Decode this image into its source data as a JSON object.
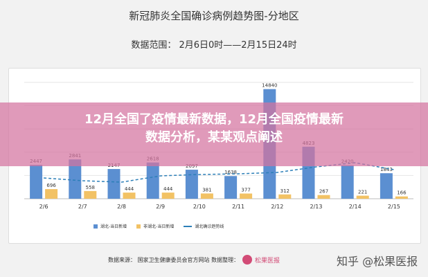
{
  "header": {
    "title": "新冠肺炎全国确诊病例趋势图-分地区",
    "range": "数据范围：  2月6日0时——2月15日24时"
  },
  "banner": {
    "line1": "12月全国了疫情最新数据，12月全国疫情最新",
    "line2": "数据分析，某某观点阐述"
  },
  "footer": {
    "source": "数据来源：   国家卫生健康委员会官方网站   数据整理：",
    "brand": "松果医报",
    "zhihu": "知乎 @松果医报"
  },
  "colors": {
    "hubei": "#5b8fd1",
    "nonhubei": "#f2c265",
    "line": "#2c7fb8"
  },
  "chart_data": {
    "type": "bar",
    "categories": [
      "2/6",
      "2/7",
      "2/8",
      "2/9",
      "2/10",
      "2/11",
      "2/12",
      "2/13",
      "2/14",
      "2/15"
    ],
    "series": [
      {
        "name": "湖北-当日新增",
        "values": [
          2447,
          2841,
          2147,
          2618,
          2097,
          1638,
          14840,
          4823,
          2420,
          1843
        ]
      },
      {
        "name": "非湖北-当日新增",
        "values": [
          696,
          558,
          444,
          444,
          381,
          377,
          312,
          267,
          221,
          166
        ]
      }
    ],
    "line_series": {
      "name": "湖北确诊趋势线",
      "values": [
        1500,
        1300,
        1200,
        1650,
        1750,
        1800,
        1900,
        2300,
        2600,
        2100
      ]
    },
    "ylim": [
      0,
      16000
    ],
    "legend_position": "bottom-left"
  }
}
